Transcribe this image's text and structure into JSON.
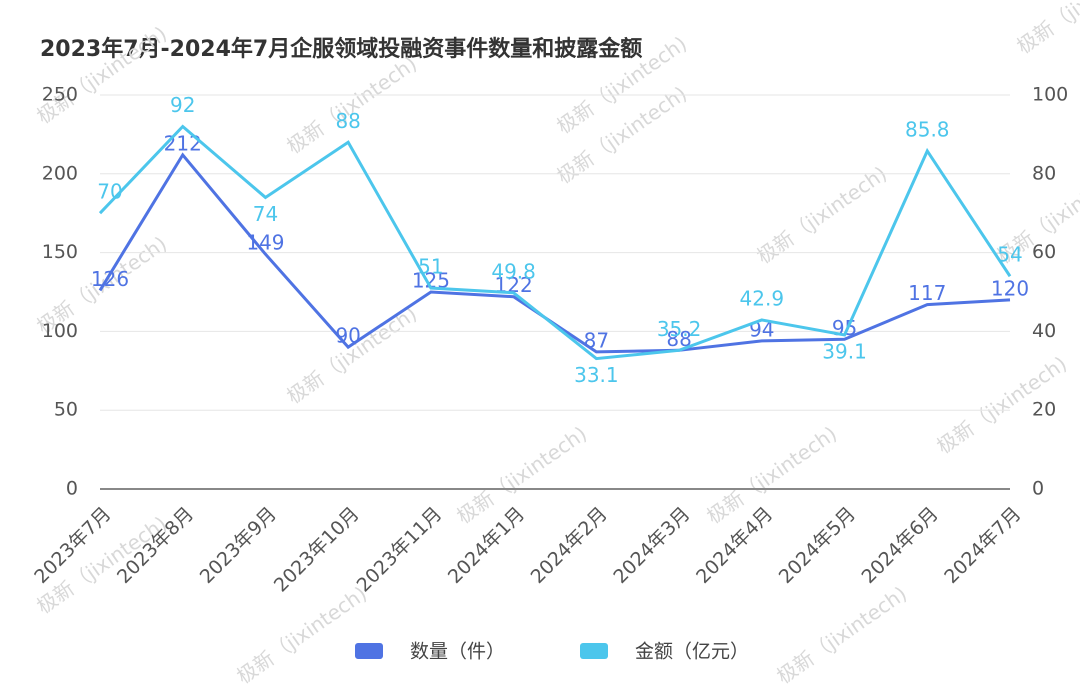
{
  "chart_data": {
    "type": "line",
    "title": "2023年7月-2024年7月企服领域投融资事件数量和披露金额",
    "categories": [
      "2023年7月",
      "2023年8月",
      "2023年9月",
      "2023年10月",
      "2023年11月",
      "2024年1月",
      "2024年2月",
      "2024年3月",
      "2024年4月",
      "2024年5月",
      "2024年6月",
      "2024年7月"
    ],
    "series": [
      {
        "name": "数量（件）",
        "color": "#4f73e3",
        "values": [
          126,
          212,
          149,
          90,
          125,
          122,
          87,
          88,
          94,
          95,
          117,
          120
        ]
      },
      {
        "name": "金额（亿元）",
        "color": "#4cc6ec",
        "axis": "y2",
        "values": [
          70,
          92,
          74,
          88,
          51,
          49.8,
          33.1,
          35.2,
          42.9,
          39.1,
          85.8,
          54
        ]
      }
    ],
    "ylim": [
      0,
      250
    ],
    "yticks": [
      0,
      50,
      100,
      150,
      200,
      250
    ],
    "y2lim": [
      0,
      100
    ],
    "y2ticks": [
      0,
      20,
      40,
      60,
      80,
      100
    ],
    "grid": true,
    "legend": "bottom",
    "watermark": "极新（jixintech)"
  }
}
